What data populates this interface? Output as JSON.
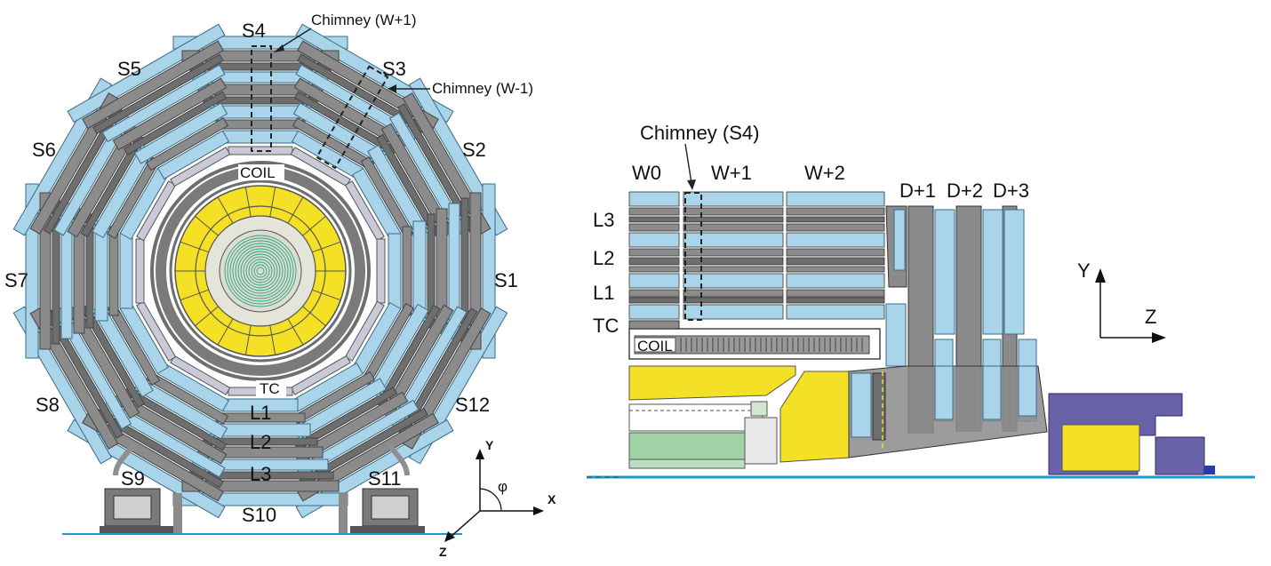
{
  "transverse_view": {
    "sectors": [
      "S1",
      "S2",
      "S3",
      "S4",
      "S5",
      "S6",
      "S7",
      "S8",
      "S9",
      "S10",
      "S11",
      "S12"
    ],
    "chimney_w_plus_1": "Chimney (W+1)",
    "chimney_w_minus_1": "Chimney (W-1)",
    "coil": "COIL",
    "tc": "TC",
    "layers": [
      "L1",
      "L2",
      "L3"
    ],
    "axes": {
      "y": "Y",
      "x": "X",
      "z": "Z",
      "phi": "φ"
    }
  },
  "longitudinal_view": {
    "chimney_s4": "Chimney (S4)",
    "wheels": [
      "W0",
      "W+1",
      "W+2"
    ],
    "disks": [
      "D+1",
      "D+2",
      "D+3"
    ],
    "layers": [
      "L3",
      "L2",
      "L1"
    ],
    "tc": "TC",
    "coil": "COIL",
    "axes": {
      "y": "Y",
      "z": "Z"
    }
  },
  "colors": {
    "chamber": "#a9d4ea",
    "iron": "#8b8b8b",
    "iron_dark": "#6e6e6e",
    "calorimeter_yellow": "#f4e025",
    "tracker_green": "#2aa57e",
    "endcap_purple": "#6a62a8",
    "floor_blue": "#1c9bd0"
  }
}
